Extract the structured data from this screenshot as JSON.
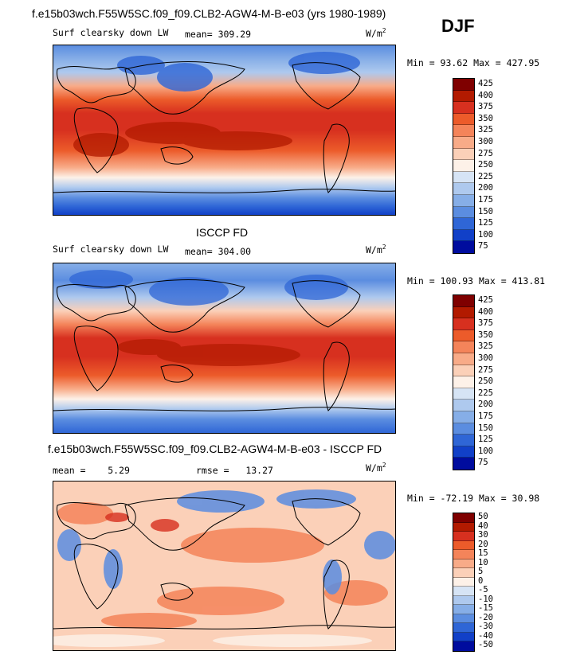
{
  "season": "DJF",
  "palettes": {
    "abs": [
      "#7f0000",
      "#b21a00",
      "#d7301f",
      "#ec5b2a",
      "#f4845a",
      "#f8ab88",
      "#fbd0b8",
      "#fdf1e8",
      "#d6e4f5",
      "#aec9ee",
      "#86aee7",
      "#5b8de0",
      "#2f66d6",
      "#1140c8",
      "#000c9e"
    ],
    "diff": [
      "#7f0000",
      "#b21a00",
      "#d7301f",
      "#ec5b2a",
      "#f4845a",
      "#f8ab88",
      "#fbd0b8",
      "#fdf1e8",
      "#d6e4f5",
      "#aec9ee",
      "#86aee7",
      "#5b8de0",
      "#2f66d6",
      "#1140c8",
      "#000c9e"
    ]
  },
  "panels": [
    {
      "title": "f.e15b03wch.F55W5SC.f09_f09.CLB2-AGW4-M-B-e03 (yrs 1980-1989)",
      "variable": "Surf clearsky down LW",
      "stat_label": "mean=",
      "stat_value": "309.29",
      "units": "W/m",
      "units_exp": "2",
      "minmax": "Min =  93.62 Max = 427.95",
      "colorbar_labels": [
        "425",
        "400",
        "375",
        "350",
        "325",
        "300",
        "275",
        "250",
        "225",
        "200",
        "175",
        "150",
        "125",
        "100",
        "75"
      ]
    },
    {
      "title": "ISCCP FD",
      "variable": "Surf clearsky down LW",
      "stat_label": "mean=",
      "stat_value": "304.00",
      "units": "W/m",
      "units_exp": "2",
      "minmax": "Min = 100.93 Max = 413.81",
      "colorbar_labels": [
        "425",
        "400",
        "375",
        "350",
        "325",
        "300",
        "275",
        "250",
        "225",
        "200",
        "175",
        "150",
        "125",
        "100",
        "75"
      ]
    },
    {
      "title": "f.e15b03wch.F55W5SC.f09_f09.CLB2-AGW4-M-B-e03 - ISCCP FD",
      "stat_label": "mean =",
      "stat_value": "5.29",
      "rmse_label": "rmse =",
      "rmse_value": "13.27",
      "units": "W/m",
      "units_exp": "2",
      "minmax": "Min = -72.19 Max =  30.98",
      "colorbar_labels": [
        "50",
        "40",
        "30",
        "20",
        "15",
        "10",
        "5",
        "0",
        "-5",
        "-10",
        "-15",
        "-20",
        "-30",
        "-40",
        "-50"
      ]
    }
  ],
  "chart_data": [
    {
      "type": "heatmap",
      "title": "f.e15b03wch.F55W5SC.f09_f09.CLB2-AGW4-M-B-e03 (yrs 1980-1989)",
      "variable": "Surf clearsky down LW",
      "units": "W/m2",
      "mean": 309.29,
      "min": 93.62,
      "max": 427.95,
      "contour_levels": [
        75,
        100,
        125,
        150,
        175,
        200,
        225,
        250,
        275,
        300,
        325,
        350,
        375,
        400,
        425
      ],
      "lat_profile_approx": {
        "lat": [
          90,
          70,
          50,
          30,
          10,
          -10,
          -30,
          -50,
          -70,
          -90
        ],
        "value": [
          170,
          190,
          240,
          330,
          400,
          400,
          340,
          270,
          200,
          110
        ]
      }
    },
    {
      "type": "heatmap",
      "title": "ISCCP FD",
      "variable": "Surf clearsky down LW",
      "units": "W/m2",
      "mean": 304.0,
      "min": 100.93,
      "max": 413.81,
      "contour_levels": [
        75,
        100,
        125,
        150,
        175,
        200,
        225,
        250,
        275,
        300,
        325,
        350,
        375,
        400,
        425
      ],
      "lat_profile_approx": {
        "lat": [
          90,
          70,
          50,
          30,
          10,
          -10,
          -30,
          -50,
          -70,
          -90
        ],
        "value": [
          160,
          180,
          230,
          320,
          395,
          395,
          335,
          265,
          195,
          120
        ]
      }
    },
    {
      "type": "heatmap",
      "title": "f.e15b03wch.F55W5SC.f09_f09.CLB2-AGW4-M-B-e03 - ISCCP FD",
      "units": "W/m2",
      "mean": 5.29,
      "rmse": 13.27,
      "min": -72.19,
      "max": 30.98,
      "contour_levels": [
        -50,
        -40,
        -30,
        -20,
        -15,
        -10,
        -5,
        0,
        5,
        10,
        15,
        20,
        30,
        40,
        50
      ]
    }
  ]
}
